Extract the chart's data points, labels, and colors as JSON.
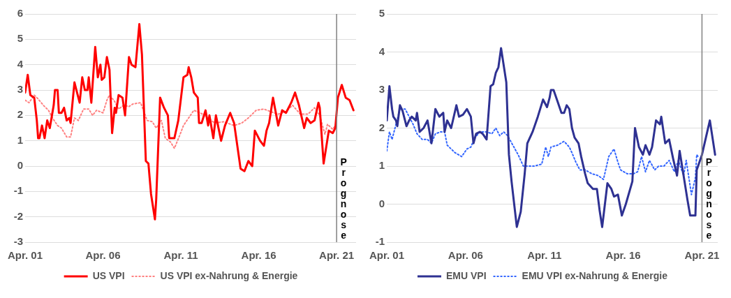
{
  "chart_data": [
    {
      "type": "line",
      "xlim": [
        "2001-04",
        "2022-07"
      ],
      "ylim": [
        -3,
        6
      ],
      "yticks": [
        -3,
        -2,
        -1,
        0,
        1,
        2,
        3,
        4,
        5,
        6
      ],
      "xticks": [
        {
          "value": "2001-04",
          "label": "Apr. 01"
        },
        {
          "value": "2006-04",
          "label": "Apr. 06"
        },
        {
          "value": "2011-04",
          "label": "Apr. 11"
        },
        {
          "value": "2016-04",
          "label": "Apr. 16"
        },
        {
          "value": "2021-04",
          "label": "Apr. 21"
        }
      ],
      "grid": "y",
      "legend": "bottom",
      "marker": "none",
      "ref_lines": [
        {
          "axis": "x",
          "value": "2021-04",
          "label": "Prognose",
          "color": "#808080"
        }
      ],
      "series": [
        {
          "name": "US VPI",
          "color": "#ff0000",
          "line_style": "solid",
          "x": [
            "2001-04",
            "2001-06",
            "2001-08",
            "2001-11",
            "2002-01",
            "2002-02",
            "2002-03",
            "2002-05",
            "2002-07",
            "2002-09",
            "2002-11",
            "2003-02",
            "2003-03",
            "2003-05",
            "2003-06",
            "2003-08",
            "2003-10",
            "2003-12",
            "2004-02",
            "2004-03",
            "2004-06",
            "2004-10",
            "2004-12",
            "2005-02",
            "2005-04",
            "2005-05",
            "2005-07",
            "2005-10",
            "2005-12",
            "2006-02",
            "2006-03",
            "2006-05",
            "2006-07",
            "2006-09",
            "2006-11",
            "2007-01",
            "2007-02",
            "2007-04",
            "2007-07",
            "2007-09",
            "2007-12",
            "2008-02",
            "2008-05",
            "2008-08",
            "2008-10",
            "2009-01",
            "2009-03",
            "2009-05",
            "2009-08",
            "2009-09",
            "2009-12",
            "2010-03",
            "2010-06",
            "2010-07",
            "2010-11",
            "2011-02",
            "2011-06",
            "2011-09",
            "2011-10",
            "2011-12",
            "2012-02",
            "2012-05",
            "2012-06",
            "2012-08",
            "2012-11",
            "2013-01",
            "2013-02",
            "2013-05",
            "2013-07",
            "2013-11",
            "2014-02",
            "2014-06",
            "2014-09",
            "2015-02",
            "2015-05",
            "2015-08",
            "2015-11",
            "2016-01",
            "2016-05",
            "2016-08",
            "2016-10",
            "2016-12",
            "2017-03",
            "2017-07",
            "2017-10",
            "2018-01",
            "2018-05",
            "2018-08",
            "2018-11",
            "2019-03",
            "2019-05",
            "2019-08",
            "2019-11",
            "2020-02",
            "2020-03",
            "2020-06",
            "2020-10",
            "2021-01",
            "2021-03",
            "2021-05",
            "2021-08",
            "2021-11",
            "2022-02",
            "2022-05"
          ],
          "values": [
            2.9,
            3.6,
            2.8,
            2.7,
            1.8,
            1.1,
            1.1,
            1.6,
            1.1,
            1.8,
            1.5,
            2.4,
            3.0,
            3.0,
            2.1,
            2.1,
            2.3,
            1.8,
            1.9,
            1.7,
            3.3,
            2.5,
            3.5,
            3.0,
            3.0,
            3.5,
            2.5,
            4.7,
            3.5,
            4.0,
            3.4,
            3.5,
            4.3,
            3.8,
            1.3,
            2.3,
            2.1,
            2.8,
            2.7,
            2.0,
            4.3,
            4.0,
            3.9,
            5.6,
            4.4,
            0.2,
            0.1,
            -1.1,
            -2.1,
            -1.3,
            2.7,
            2.3,
            2.0,
            1.1,
            1.1,
            1.8,
            3.5,
            3.6,
            3.9,
            3.5,
            2.9,
            2.7,
            1.7,
            1.7,
            2.2,
            1.6,
            2.0,
            1.1,
            2.0,
            1.0,
            1.6,
            2.1,
            1.7,
            -0.1,
            -0.2,
            0.2,
            0.0,
            1.4,
            1.0,
            0.8,
            1.4,
            1.7,
            2.7,
            1.6,
            2.2,
            2.1,
            2.5,
            2.9,
            2.4,
            1.5,
            1.9,
            1.7,
            1.8,
            2.5,
            2.3,
            0.1,
            1.4,
            1.3,
            1.5,
            2.7,
            3.2,
            2.7,
            2.6,
            2.2
          ]
        },
        {
          "name": "US VPI ex-Nahrung & Energie",
          "color": "#ff8080",
          "line_style": "dotted",
          "x": [
            "2001-04",
            "2001-07",
            "2001-09",
            "2001-11",
            "2002-02",
            "2002-06",
            "2002-10",
            "2003-01",
            "2003-05",
            "2003-08",
            "2003-12",
            "2004-03",
            "2004-06",
            "2004-09",
            "2005-01",
            "2005-05",
            "2005-08",
            "2005-11",
            "2006-04",
            "2006-07",
            "2006-09",
            "2007-01",
            "2007-04",
            "2007-08",
            "2007-12",
            "2008-03",
            "2008-09",
            "2009-02",
            "2009-06",
            "2009-09",
            "2010-01",
            "2010-04",
            "2010-08",
            "2010-11",
            "2011-03",
            "2011-06",
            "2012-02",
            "2012-07",
            "2013-01",
            "2013-06",
            "2014-01",
            "2014-09",
            "2015-03",
            "2015-08",
            "2016-02",
            "2016-08",
            "2017-01",
            "2017-07",
            "2018-01",
            "2018-06",
            "2018-12",
            "2019-06",
            "2019-11",
            "2020-03",
            "2020-07",
            "2020-09",
            "2021-01",
            "2021-03"
          ],
          "values": [
            2.6,
            2.5,
            2.65,
            2.8,
            2.65,
            2.4,
            2.2,
            1.9,
            1.6,
            1.5,
            1.15,
            1.15,
            1.9,
            1.8,
            2.25,
            2.25,
            2.0,
            2.2,
            2.1,
            2.6,
            2.8,
            2.55,
            2.25,
            2.4,
            2.35,
            2.45,
            2.5,
            1.8,
            1.75,
            1.5,
            1.8,
            1.1,
            0.95,
            0.7,
            1.2,
            1.6,
            2.2,
            2.1,
            1.9,
            1.7,
            1.75,
            1.6,
            1.7,
            1.9,
            2.2,
            2.25,
            2.15,
            2.05,
            2.15,
            2.4,
            2.05,
            2.05,
            2.3,
            2.0,
            1.25,
            1.65,
            1.45,
            1.6
          ]
        }
      ]
    },
    {
      "type": "line",
      "xlim": [
        "2001-04",
        "2022-04"
      ],
      "ylim": [
        -1,
        5
      ],
      "yticks": [
        -1,
        0,
        1,
        2,
        3,
        4,
        5
      ],
      "xticks": [
        {
          "value": "2001-04",
          "label": "Apr. 01"
        },
        {
          "value": "2006-04",
          "label": "Apr. 06"
        },
        {
          "value": "2011-04",
          "label": "Apr. 11"
        },
        {
          "value": "2016-04",
          "label": "Apr. 16"
        },
        {
          "value": "2021-04",
          "label": "Apr. 21"
        }
      ],
      "grid": "y",
      "legend": "bottom",
      "marker": "none",
      "ref_lines": [
        {
          "axis": "x",
          "value": "2021-04",
          "label": "Prognose",
          "color": "#808080"
        }
      ],
      "series": [
        {
          "name": "EMU VPI",
          "color": "#2e3192",
          "line_style": "solid",
          "x": [
            "2001-04",
            "2001-06",
            "2001-08",
            "2001-09",
            "2001-11",
            "2001-12",
            "2002-02",
            "2002-04",
            "2002-07",
            "2002-09",
            "2002-11",
            "2003-02",
            "2003-03",
            "2003-05",
            "2003-08",
            "2003-11",
            "2004-02",
            "2004-05",
            "2004-08",
            "2004-11",
            "2004-12",
            "2005-02",
            "2005-05",
            "2005-09",
            "2005-11",
            "2006-02",
            "2006-05",
            "2006-08",
            "2006-10",
            "2006-12",
            "2007-03",
            "2007-05",
            "2007-08",
            "2007-11",
            "2008-01",
            "2008-03",
            "2008-05",
            "2008-07",
            "2008-11",
            "2009-01",
            "2009-03",
            "2009-05",
            "2009-07",
            "2009-10",
            "2010-01",
            "2010-03",
            "2010-07",
            "2010-11",
            "2011-03",
            "2011-06",
            "2011-08",
            "2011-09",
            "2011-11",
            "2012-02",
            "2012-05",
            "2012-07",
            "2012-09",
            "2012-11",
            "2013-01",
            "2013-03",
            "2013-06",
            "2013-08",
            "2013-11",
            "2014-01",
            "2014-05",
            "2014-08",
            "2014-10",
            "2014-12",
            "2015-04",
            "2015-07",
            "2015-09",
            "2015-12",
            "2016-03",
            "2016-06",
            "2016-11",
            "2017-01",
            "2017-04",
            "2017-07",
            "2017-09",
            "2017-12",
            "2018-02",
            "2018-05",
            "2018-08",
            "2018-09",
            "2018-12",
            "2019-03",
            "2019-06",
            "2019-09",
            "2019-11",
            "2020-02",
            "2020-05",
            "2020-07",
            "2020-11",
            "2020-12",
            "2021-04",
            "2021-08",
            "2021-10",
            "2022-02"
          ],
          "values": [
            2.2,
            3.1,
            2.5,
            2.3,
            2.2,
            2.05,
            2.6,
            2.45,
            2.05,
            2.2,
            2.3,
            2.2,
            2.4,
            1.9,
            2.0,
            2.2,
            1.6,
            2.5,
            2.3,
            2.4,
            1.9,
            2.2,
            2.0,
            2.6,
            2.3,
            2.35,
            2.5,
            2.3,
            1.6,
            1.85,
            1.9,
            1.85,
            1.7,
            3.1,
            3.15,
            3.45,
            3.6,
            4.1,
            3.2,
            1.3,
            0.6,
            0.0,
            -0.6,
            -0.2,
            0.8,
            1.6,
            1.9,
            2.3,
            2.75,
            2.55,
            2.8,
            3.0,
            3.0,
            2.7,
            2.4,
            2.4,
            2.6,
            2.5,
            2.0,
            1.75,
            1.6,
            1.25,
            0.8,
            0.55,
            0.4,
            0.4,
            -0.15,
            -0.6,
            0.55,
            0.4,
            0.2,
            0.25,
            -0.3,
            0.0,
            0.6,
            2.0,
            1.5,
            1.3,
            1.55,
            1.3,
            1.5,
            2.2,
            2.1,
            2.3,
            1.6,
            1.7,
            1.2,
            0.75,
            1.4,
            0.75,
            0.1,
            -0.3,
            -0.3,
            0.9,
            1.3,
            1.9,
            2.2,
            1.3
          ]
        },
        {
          "name": "EMU VPI ex-Nahrung & Energie",
          "color": "#3366ff",
          "line_style": "dotted",
          "x": [
            "2001-04",
            "2001-06",
            "2001-08",
            "2001-11",
            "2002-02",
            "2002-06",
            "2002-09",
            "2002-12",
            "2003-03",
            "2003-07",
            "2003-11",
            "2004-02",
            "2004-05",
            "2004-09",
            "2004-12",
            "2005-02",
            "2005-05",
            "2005-08",
            "2006-01",
            "2006-05",
            "2006-08",
            "2006-11",
            "2007-03",
            "2007-08",
            "2007-12",
            "2008-03",
            "2008-06",
            "2008-09",
            "2008-12",
            "2009-04",
            "2009-08",
            "2009-12",
            "2010-05",
            "2010-08",
            "2011-02",
            "2011-05",
            "2011-07",
            "2011-09",
            "2012-02",
            "2012-07",
            "2012-11",
            "2013-01",
            "2013-04",
            "2013-07",
            "2013-11",
            "2014-04",
            "2014-09",
            "2015-01",
            "2015-05",
            "2015-09",
            "2015-12",
            "2016-02",
            "2016-07",
            "2016-12",
            "2017-03",
            "2017-06",
            "2017-09",
            "2017-12",
            "2018-04",
            "2018-07",
            "2018-11",
            "2019-03",
            "2019-07",
            "2019-10",
            "2020-02",
            "2020-04",
            "2020-08",
            "2020-11",
            "2020-12",
            "2021-01"
          ],
          "values": [
            1.4,
            1.9,
            1.7,
            2.1,
            2.5,
            2.5,
            2.3,
            2.1,
            1.85,
            1.7,
            1.7,
            1.6,
            1.85,
            1.9,
            1.9,
            1.55,
            1.45,
            1.35,
            1.25,
            1.45,
            1.5,
            1.75,
            1.9,
            1.9,
            1.85,
            2.0,
            1.8,
            1.9,
            1.8,
            1.55,
            1.3,
            1.0,
            1.0,
            1.0,
            1.05,
            1.5,
            1.25,
            1.5,
            1.55,
            1.65,
            1.5,
            1.35,
            1.1,
            0.9,
            0.9,
            0.8,
            0.75,
            0.65,
            1.25,
            1.45,
            1.1,
            0.9,
            0.8,
            0.8,
            0.85,
            1.25,
            0.85,
            1.15,
            0.9,
            1.0,
            1.0,
            1.15,
            0.85,
            1.15,
            0.75,
            1.15,
            0.25,
            0.7,
            1.3,
            1.25
          ]
        }
      ]
    }
  ]
}
